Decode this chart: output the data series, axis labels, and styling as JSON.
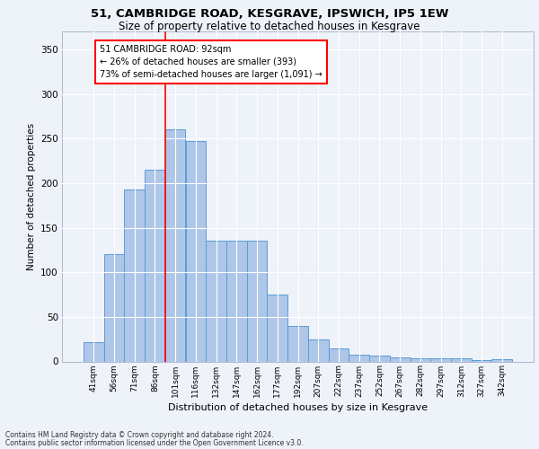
{
  "title_line1": "51, CAMBRIDGE ROAD, KESGRAVE, IPSWICH, IP5 1EW",
  "title_line2": "Size of property relative to detached houses in Kesgrave",
  "xlabel": "Distribution of detached houses by size in Kesgrave",
  "ylabel": "Number of detached properties",
  "categories": [
    "41sqm",
    "56sqm",
    "71sqm",
    "86sqm",
    "101sqm",
    "116sqm",
    "132sqm",
    "147sqm",
    "162sqm",
    "177sqm",
    "192sqm",
    "207sqm",
    "222sqm",
    "237sqm",
    "252sqm",
    "267sqm",
    "282sqm",
    "297sqm",
    "312sqm",
    "327sqm",
    "342sqm"
  ],
  "values": [
    22,
    120,
    193,
    215,
    260,
    247,
    135,
    135,
    135,
    75,
    40,
    25,
    15,
    8,
    7,
    5,
    4,
    4,
    4,
    2,
    3
  ],
  "bar_color": "#aec6e8",
  "bar_edge_color": "#5b9bd5",
  "red_line_index": 3.5,
  "annotation_text": "51 CAMBRIDGE ROAD: 92sqm\n← 26% of detached houses are smaller (393)\n73% of semi-detached houses are larger (1,091) →",
  "annotation_box_color": "white",
  "annotation_box_edge_color": "red",
  "ylim": [
    0,
    370
  ],
  "yticks": [
    0,
    50,
    100,
    150,
    200,
    250,
    300,
    350
  ],
  "footer_line1": "Contains HM Land Registry data © Crown copyright and database right 2024.",
  "footer_line2": "Contains public sector information licensed under the Open Government Licence v3.0.",
  "background_color": "#eef2f9",
  "grid_color": "white"
}
